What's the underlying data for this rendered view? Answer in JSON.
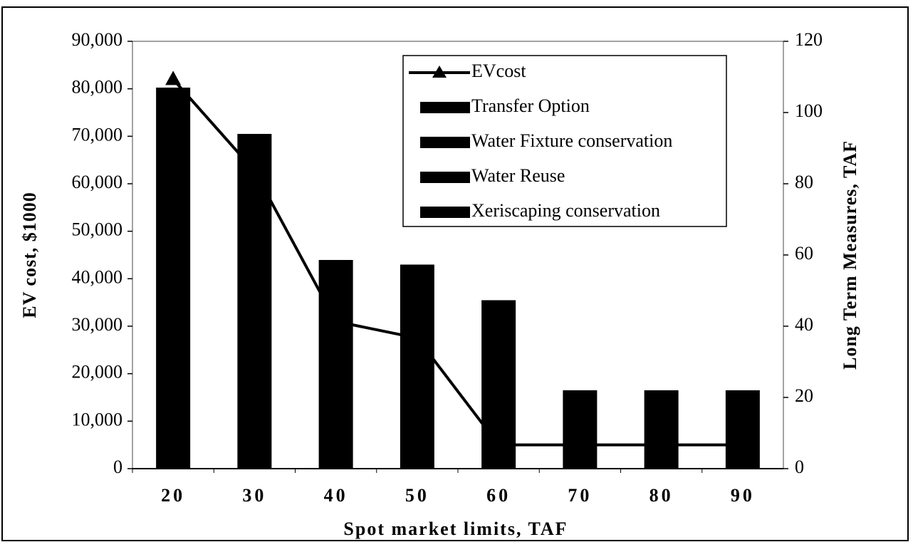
{
  "chart_data": {
    "type": "bar-line",
    "x_label": "Spot market limits, TAF",
    "y_label": "EV cost, $1000",
    "y2_label": "Long Term Measures, TAF",
    "categories": [
      "20",
      "30",
      "40",
      "50",
      "60",
      "70",
      "80",
      "90"
    ],
    "ylim": [
      0,
      90000
    ],
    "yticks": [
      {
        "value": 0,
        "label": "0"
      },
      {
        "value": 10000,
        "label": "10,000"
      },
      {
        "value": 20000,
        "label": "20,000"
      },
      {
        "value": 30000,
        "label": "30,000"
      },
      {
        "value": 40000,
        "label": "40,000"
      },
      {
        "value": 50000,
        "label": "50,000"
      },
      {
        "value": 60000,
        "label": "60,000"
      },
      {
        "value": 70000,
        "label": "70,000"
      },
      {
        "value": 80000,
        "label": "80,000"
      },
      {
        "value": 90000,
        "label": "90,000"
      }
    ],
    "y2lim": [
      0,
      120
    ],
    "y2ticks": [
      0,
      20,
      40,
      60,
      80,
      100,
      120
    ],
    "series": [
      {
        "name": "EVcost",
        "type": "line",
        "color": "#000000",
        "values": [
          82000,
          62700,
          31000,
          27500,
          5000,
          5000,
          5000,
          5000
        ]
      },
      {
        "name": "Transfer Option",
        "type": "bar",
        "axis": "y2",
        "color": "#000000",
        "values": [
          107,
          94,
          58.6,
          57.3,
          47.3,
          22,
          22,
          22
        ]
      },
      {
        "name": "Water Fixture conservation",
        "type": "bar",
        "axis": "y2",
        "color": "#000000",
        "values": [
          0,
          0,
          0,
          0,
          0,
          0,
          0,
          0
        ]
      },
      {
        "name": "Water Reuse",
        "type": "bar",
        "axis": "y2",
        "color": "#000000",
        "values": [
          0,
          0,
          0,
          0,
          0,
          0,
          0,
          0
        ]
      },
      {
        "name": "Xeriscaping conservation",
        "type": "bar",
        "axis": "y2",
        "color": "#000000",
        "values": [
          0,
          0,
          0,
          0,
          0,
          0,
          0,
          0
        ]
      }
    ],
    "grid": false,
    "legend": "upper right"
  }
}
